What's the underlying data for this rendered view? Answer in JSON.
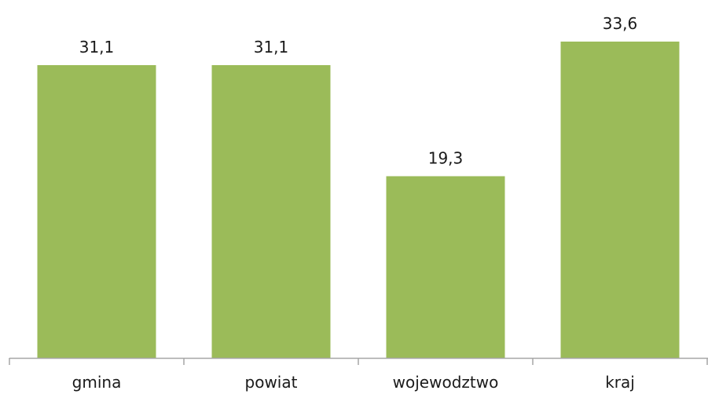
{
  "chart_data": {
    "type": "bar",
    "title": "",
    "xlabel": "",
    "ylabel": "",
    "categories": [
      "gmina",
      "powiat",
      "wojewodztwo",
      "kraj"
    ],
    "values": [
      31.1,
      31.1,
      19.3,
      33.6
    ],
    "value_labels": [
      "31,1",
      "31,1",
      "19,3",
      "33,6"
    ],
    "ylim": [
      0,
      36.6
    ],
    "grid": false,
    "legend": "none",
    "bar_color": "#9BBB59",
    "axis_color": "#A6A6A6"
  }
}
